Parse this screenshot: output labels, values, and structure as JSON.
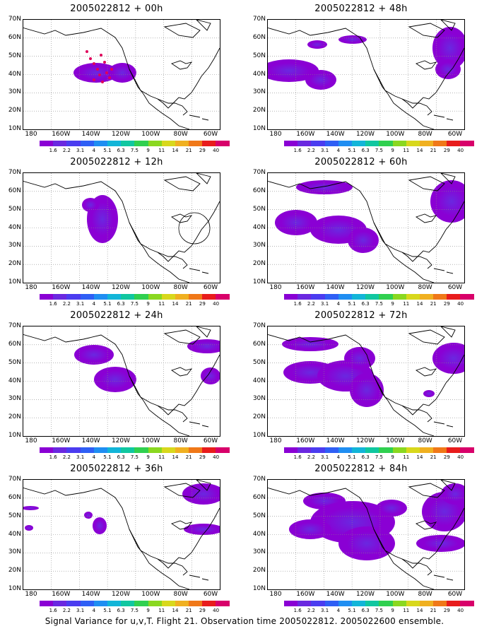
{
  "panels": [
    {
      "id": "p00",
      "title": "2005022812 + 00h",
      "col": 0,
      "row": 0
    },
    {
      "id": "p48",
      "title": "2005022812 + 48h",
      "col": 1,
      "row": 0
    },
    {
      "id": "p12",
      "title": "2005022812 + 12h",
      "col": 0,
      "row": 1
    },
    {
      "id": "p60",
      "title": "2005022812 + 60h",
      "col": 1,
      "row": 1
    },
    {
      "id": "p24",
      "title": "2005022812 + 24h",
      "col": 0,
      "row": 2
    },
    {
      "id": "p72",
      "title": "2005022812 + 72h",
      "col": 1,
      "row": 2
    },
    {
      "id": "p36",
      "title": "2005022812 + 36h",
      "col": 0,
      "row": 3
    },
    {
      "id": "p84",
      "title": "2005022812 + 84h",
      "col": 1,
      "row": 3
    }
  ],
  "axes": {
    "y_labels": [
      "70N",
      "60N",
      "50N",
      "40N",
      "30N",
      "20N",
      "10N"
    ],
    "x_labels": [
      "180",
      "160W",
      "140W",
      "120W",
      "100W",
      "80W",
      "60W"
    ]
  },
  "colorbar": {
    "labels": [
      "1.6",
      "2.2",
      "3.1",
      "4",
      "5.1",
      "6.3",
      "7.5",
      "9",
      "11",
      "14",
      "21",
      "29",
      "40"
    ],
    "colors": [
      "#8a00d4",
      "#6a28e0",
      "#4b3cf0",
      "#2f5ff5",
      "#1f8ef2",
      "#12b5d8",
      "#10c7a0",
      "#30d050",
      "#8ad820",
      "#d8d81c",
      "#f0b020",
      "#f07818",
      "#e81c1c",
      "#d8006a"
    ]
  },
  "caption": "Signal Variance for u,v,T. Flight 21. Observation time 2005022812. 2005022600 ensemble."
}
